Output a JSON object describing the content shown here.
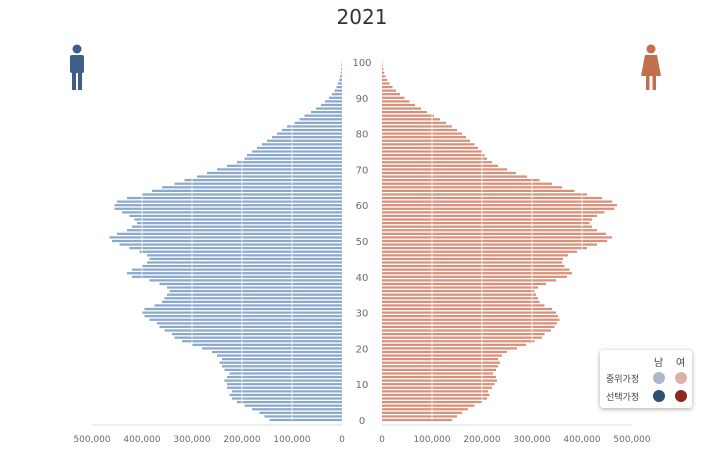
{
  "chart_data": {
    "type": "bar",
    "subtype": "population-pyramid",
    "title": "2021",
    "xticks_left": [
      "500,000",
      "400,000",
      "300,000",
      "200,000",
      "100,000",
      "0"
    ],
    "xticks_right": [
      "0",
      "100,000",
      "200,000",
      "300,000",
      "400,000",
      "500,000"
    ],
    "yticks": [
      "0",
      "10",
      "20",
      "30",
      "40",
      "50",
      "60",
      "70",
      "80",
      "90",
      "100"
    ],
    "xlim": [
      0,
      500000
    ],
    "ylim": [
      0,
      100
    ],
    "grid": true,
    "legend_position": "bottom-right",
    "ages": [
      0,
      1,
      2,
      3,
      4,
      5,
      6,
      7,
      8,
      9,
      10,
      11,
      12,
      13,
      14,
      15,
      16,
      17,
      18,
      19,
      20,
      21,
      22,
      23,
      24,
      25,
      26,
      27,
      28,
      29,
      30,
      31,
      32,
      33,
      34,
      35,
      36,
      37,
      38,
      39,
      40,
      41,
      42,
      43,
      44,
      45,
      46,
      47,
      48,
      49,
      50,
      51,
      52,
      53,
      54,
      55,
      56,
      57,
      58,
      59,
      60,
      61,
      62,
      63,
      64,
      65,
      66,
      67,
      68,
      69,
      70,
      71,
      72,
      73,
      74,
      75,
      76,
      77,
      78,
      79,
      80,
      81,
      82,
      83,
      84,
      85,
      86,
      87,
      88,
      89,
      90,
      91,
      92,
      93,
      94,
      95,
      96,
      97,
      98,
      99,
      100
    ],
    "series": [
      {
        "name": "남",
        "values": [
          145000,
          155000,
          165000,
          180000,
          195000,
          210000,
          220000,
          225000,
          220000,
          230000,
          230000,
          235000,
          230000,
          225000,
          235000,
          240000,
          245000,
          240000,
          250000,
          260000,
          280000,
          300000,
          320000,
          335000,
          340000,
          355000,
          365000,
          370000,
          385000,
          395000,
          400000,
          395000,
          375000,
          360000,
          355000,
          350000,
          345000,
          350000,
          365000,
          385000,
          420000,
          430000,
          420000,
          400000,
          390000,
          385000,
          390000,
          405000,
          425000,
          445000,
          460000,
          465000,
          450000,
          430000,
          420000,
          410000,
          415000,
          425000,
          440000,
          455000,
          455000,
          450000,
          430000,
          400000,
          380000,
          360000,
          335000,
          315000,
          290000,
          270000,
          250000,
          230000,
          210000,
          195000,
          190000,
          180000,
          170000,
          160000,
          150000,
          140000,
          130000,
          120000,
          110000,
          95000,
          85000,
          75000,
          62000,
          52000,
          42000,
          34000,
          26000,
          20000,
          15000,
          11000,
          8000,
          5500,
          4000,
          2500,
          1800,
          1100,
          700
        ]
      },
      {
        "name": "여",
        "values": [
          140000,
          150000,
          160000,
          172000,
          185000,
          200000,
          210000,
          215000,
          212000,
          220000,
          225000,
          230000,
          228000,
          222000,
          228000,
          232000,
          236000,
          232000,
          240000,
          250000,
          270000,
          288000,
          305000,
          320000,
          325000,
          338000,
          345000,
          350000,
          355000,
          352000,
          348000,
          340000,
          325000,
          315000,
          312000,
          308000,
          305000,
          312000,
          328000,
          348000,
          370000,
          380000,
          375000,
          365000,
          360000,
          362000,
          372000,
          390000,
          410000,
          430000,
          450000,
          460000,
          448000,
          430000,
          420000,
          415000,
          420000,
          430000,
          445000,
          465000,
          470000,
          460000,
          440000,
          410000,
          385000,
          360000,
          340000,
          315000,
          290000,
          268000,
          250000,
          232000,
          220000,
          210000,
          205000,
          200000,
          192000,
          185000,
          176000,
          168000,
          160000,
          150000,
          140000,
          128000,
          116000,
          104000,
          90000,
          78000,
          66000,
          55000,
          45000,
          36000,
          28000,
          21000,
          15000,
          10500,
          7000,
          4500,
          2800,
          1600,
          900
        ]
      }
    ]
  },
  "legend": {
    "header_male": "남",
    "header_female": "여",
    "row1_label": "중위가정",
    "row2_label": "선택가정",
    "colors": {
      "male_median": "#aab8c8",
      "female_median": "#d9b3a8",
      "male_selected": "#2f4f72",
      "female_selected": "#8c2a1e"
    }
  },
  "colors": {
    "male_bar": "#8aa7cd",
    "female_bar": "#d98f78",
    "male_icon": "#3d5f86",
    "female_icon": "#c0704c"
  },
  "icons": {
    "male": "male-person-icon",
    "female": "female-person-icon"
  }
}
